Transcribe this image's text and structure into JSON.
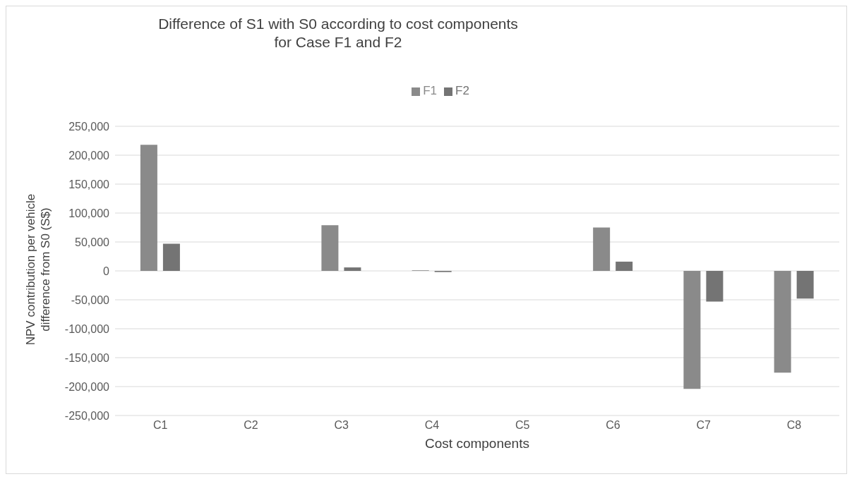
{
  "chart_data": {
    "type": "bar",
    "title": "Difference of S1 with S0 according to cost components for Case F1 and F2",
    "xlabel": "Cost components",
    "ylabel": "NPV contribution per vehicle difference from S0 (S$)",
    "categories": [
      "C1",
      "C2",
      "C3",
      "C4",
      "C5",
      "C6",
      "C7",
      "C8"
    ],
    "series": [
      {
        "name": "F1",
        "color": "#8a8a8a",
        "values": [
          218000,
          0,
          79000,
          1000,
          0,
          75000,
          -204000,
          -176000
        ]
      },
      {
        "name": "F2",
        "color": "#747474",
        "values": [
          47000,
          0,
          6000,
          -2000,
          0,
          16000,
          -53000,
          -48000
        ]
      }
    ],
    "ylim": [
      -250000,
      250000
    ],
    "yticks": [
      {
        "value": -250000,
        "label": "-250,000"
      },
      {
        "value": -200000,
        "label": "-200,000"
      },
      {
        "value": -150000,
        "label": "-150,000"
      },
      {
        "value": -100000,
        "label": "-100,000"
      },
      {
        "value": -50000,
        "label": "-50,000"
      },
      {
        "value": 0,
        "label": "0"
      },
      {
        "value": 50000,
        "label": "50,000"
      },
      {
        "value": 100000,
        "label": "100,000"
      },
      {
        "value": 150000,
        "label": "150,000"
      },
      {
        "value": 200000,
        "label": "200,000"
      },
      {
        "value": 250000,
        "label": "250,000"
      }
    ],
    "grid": "y",
    "legend": "top"
  }
}
